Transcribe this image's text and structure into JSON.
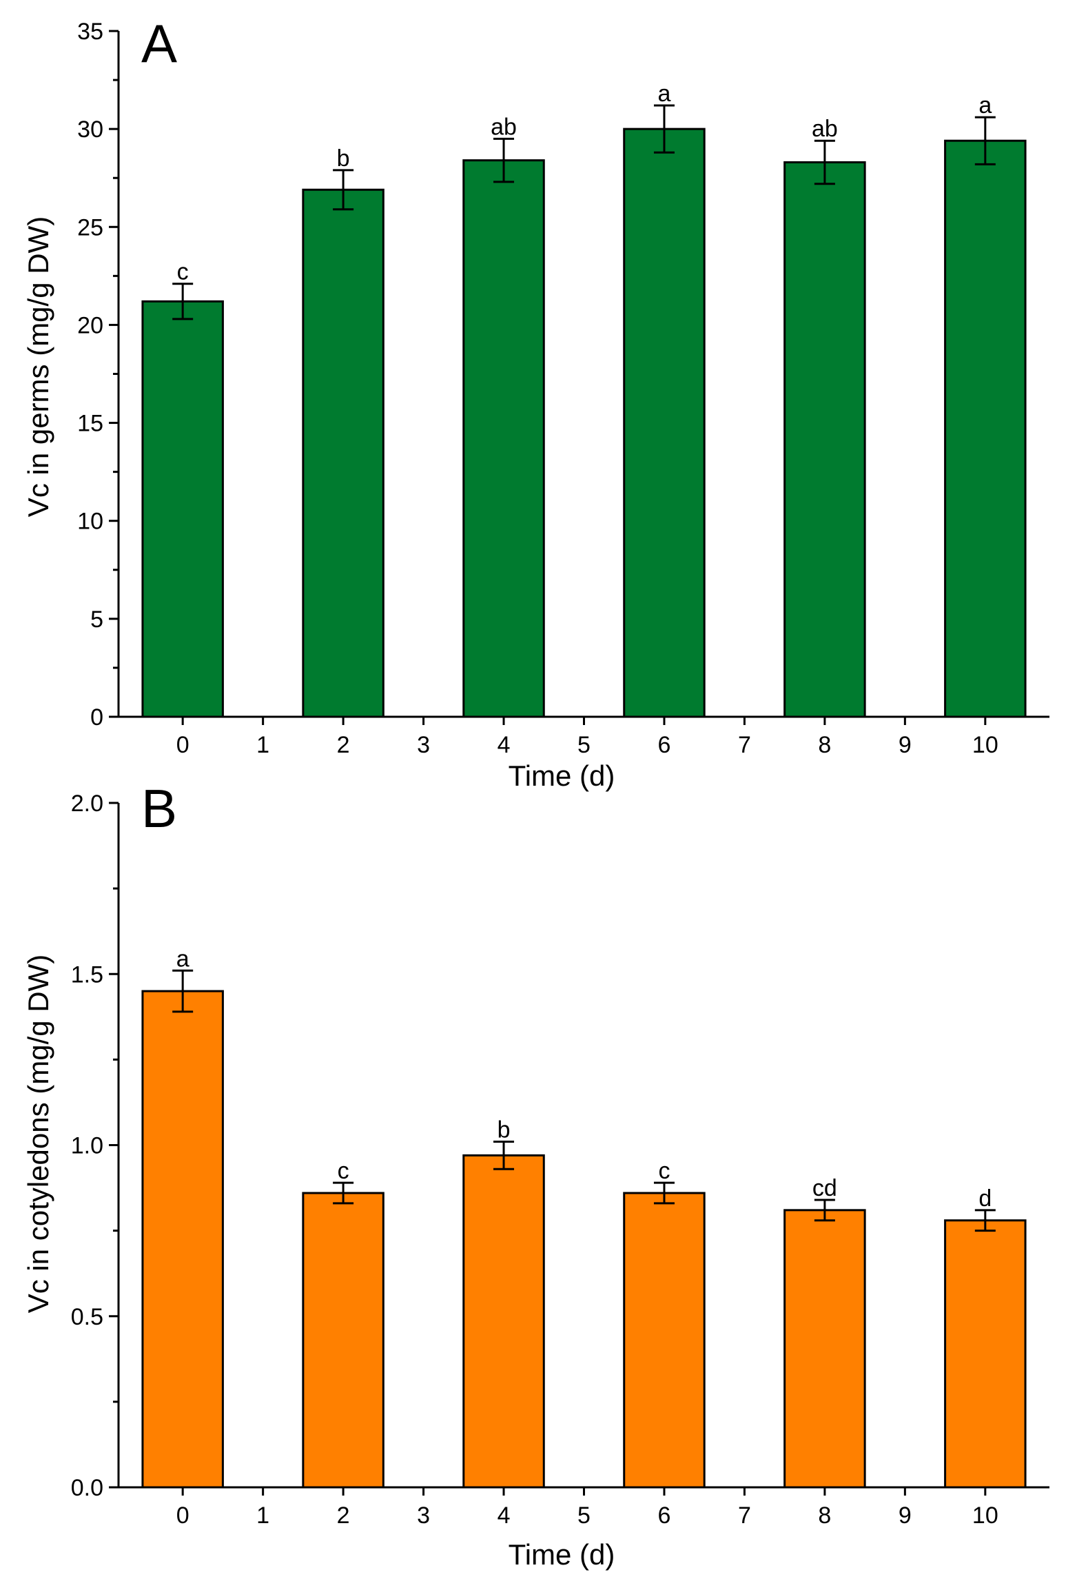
{
  "chart_data": [
    {
      "panel": "A",
      "type": "bar",
      "xlabel": "Time (d)",
      "ylabel": "Vc in germs (mg/g DW)",
      "ylim": [
        0,
        35
      ],
      "yticks": [
        0,
        5,
        10,
        15,
        20,
        25,
        30,
        35
      ],
      "xlim": [
        -0.8,
        10.8
      ],
      "xticks": [
        0,
        1,
        2,
        3,
        4,
        5,
        6,
        7,
        8,
        9,
        10
      ],
      "bar_color": "#007b2f",
      "series": [
        {
          "name": "Vc in germs",
          "x": [
            0,
            2,
            4,
            6,
            8,
            10
          ],
          "values": [
            21.2,
            26.9,
            28.4,
            30.0,
            28.3,
            29.4
          ],
          "errors": [
            0.9,
            1.0,
            1.1,
            1.2,
            1.1,
            1.2
          ],
          "labels": [
            "c",
            "b",
            "ab",
            "a",
            "ab",
            "a"
          ]
        }
      ]
    },
    {
      "panel": "B",
      "type": "bar",
      "xlabel": "Time (d)",
      "ylabel": "Vc in cotyledons (mg/g DW)",
      "ylim": [
        0,
        2.0
      ],
      "yticks": [
        "0.0",
        "0.5",
        "1.0",
        "1.5",
        "2.0"
      ],
      "xlim": [
        -0.8,
        10.8
      ],
      "xticks": [
        0,
        1,
        2,
        3,
        4,
        5,
        6,
        7,
        8,
        9,
        10
      ],
      "bar_color": "#ff8000",
      "series": [
        {
          "name": "Vc in cotyledons",
          "x": [
            0,
            2,
            4,
            6,
            8,
            10
          ],
          "values": [
            1.45,
            0.86,
            0.97,
            0.86,
            0.81,
            0.78
          ],
          "errors": [
            0.06,
            0.03,
            0.04,
            0.03,
            0.03,
            0.03
          ],
          "labels": [
            "a",
            "c",
            "b",
            "c",
            "cd",
            "d"
          ]
        }
      ]
    }
  ]
}
